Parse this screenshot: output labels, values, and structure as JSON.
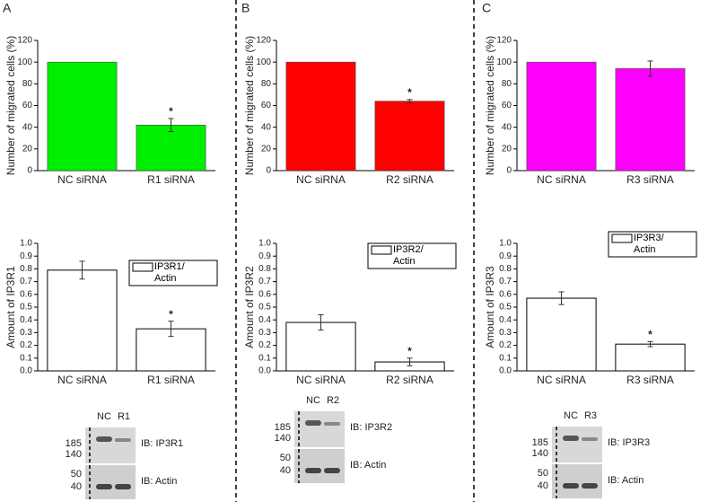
{
  "panels": [
    {
      "letter": "A",
      "blot": {
        "lanes": [
          "NC",
          "R1"
        ],
        "markers": [
          "185",
          "140",
          "50",
          "40"
        ],
        "labels": [
          "IB: IP3R1",
          "IB: Actin"
        ]
      }
    },
    {
      "letter": "B",
      "blot": {
        "lanes": [
          "NC",
          "R2"
        ],
        "markers": [
          "185",
          "140",
          "50",
          "40"
        ],
        "labels": [
          "IB: IP3R2",
          "IB: Actin"
        ]
      }
    },
    {
      "letter": "C",
      "blot": {
        "lanes": [
          "NC",
          "R3"
        ],
        "markers": [
          "185",
          "140",
          "50",
          "40"
        ],
        "labels": [
          "IB: IP3R3",
          "IB: Actin"
        ]
      }
    }
  ],
  "chart_data": [
    {
      "type": "bar",
      "ylabel": "Number of migrated cells (%)",
      "categories": [
        "NC siRNA",
        "R1 siRNA"
      ],
      "values": [
        100,
        42
      ],
      "errors": [
        null,
        6
      ],
      "color": "#00ee00",
      "ylim": [
        0,
        120
      ],
      "yticks": [
        0,
        20,
        40,
        60,
        80,
        100,
        120
      ],
      "annotations": [
        {
          "category": "R1 siRNA",
          "text": "*"
        }
      ]
    },
    {
      "type": "bar",
      "ylabel": "Number of migrated cells (%)",
      "categories": [
        "NC siRNA",
        "R2 siRNA"
      ],
      "values": [
        100,
        64
      ],
      "errors": [
        null,
        1.5
      ],
      "color": "#ff0000",
      "ylim": [
        0,
        120
      ],
      "yticks": [
        0,
        20,
        40,
        60,
        80,
        100,
        120
      ],
      "annotations": [
        {
          "category": "R2 siRNA",
          "text": "*"
        }
      ]
    },
    {
      "type": "bar",
      "ylabel": "Number of migrated cells (%)",
      "categories": [
        "NC siRNA",
        "R3 siRNA"
      ],
      "values": [
        100,
        94
      ],
      "errors": [
        null,
        7
      ],
      "color": "#ff00ff",
      "ylim": [
        0,
        120
      ],
      "yticks": [
        0,
        20,
        40,
        60,
        80,
        100,
        120
      ]
    },
    {
      "type": "bar",
      "ylabel": "Amount of IP3R1",
      "categories": [
        "NC siRNA",
        "R1 siRNA"
      ],
      "series": [
        {
          "name": "IP3R1/ Actin",
          "color": "#ffffff",
          "values": [
            0.79,
            0.33
          ],
          "errors": [
            0.07,
            0.06
          ]
        }
      ],
      "ylim": [
        0,
        1.0
      ],
      "yticks": [
        {
          "value": 0,
          "label": "0.0"
        },
        0.1,
        0.2,
        0.3,
        0.4,
        0.5,
        0.6,
        0.7,
        0.8,
        0.9,
        {
          "value": 1,
          "label": "1.0"
        }
      ],
      "legend": "upper right",
      "annotations": [
        {
          "category": "R1 siRNA",
          "text": "*"
        }
      ]
    },
    {
      "type": "bar",
      "ylabel": "Amount of IP3R2",
      "categories": [
        "NC siRNA",
        "R2 siRNA"
      ],
      "series": [
        {
          "name": "IP3R2/ Actin",
          "color": "#ffffff",
          "values": [
            0.38,
            0.07
          ],
          "errors": [
            0.06,
            0.03
          ]
        }
      ],
      "ylim": [
        0,
        1.0
      ],
      "yticks": [
        {
          "value": 0,
          "label": "0.0"
        },
        0.1,
        0.2,
        0.3,
        0.4,
        0.5,
        0.6,
        0.7,
        0.8,
        0.9,
        {
          "value": 1,
          "label": "1.0"
        }
      ],
      "legend": "upper right",
      "annotations": [
        {
          "category": "R2 siRNA",
          "text": "*"
        }
      ]
    },
    {
      "type": "bar",
      "ylabel": "Amount of IP3R3",
      "categories": [
        "NC siRNA",
        "R3 siRNA"
      ],
      "series": [
        {
          "name": "IP3R3/ Actin",
          "color": "#ffffff",
          "values": [
            0.57,
            0.21
          ],
          "errors": [
            0.05,
            0.02
          ]
        }
      ],
      "ylim": [
        0,
        1.0
      ],
      "yticks": [
        {
          "value": 0,
          "label": "0.0"
        },
        0.1,
        0.2,
        0.3,
        0.4,
        0.5,
        0.6,
        0.7,
        0.8,
        0.9,
        {
          "value": 1,
          "label": "1.0"
        }
      ],
      "legend": "upper right",
      "annotations": [
        {
          "category": "R3 siRNA",
          "text": "*"
        }
      ]
    }
  ]
}
